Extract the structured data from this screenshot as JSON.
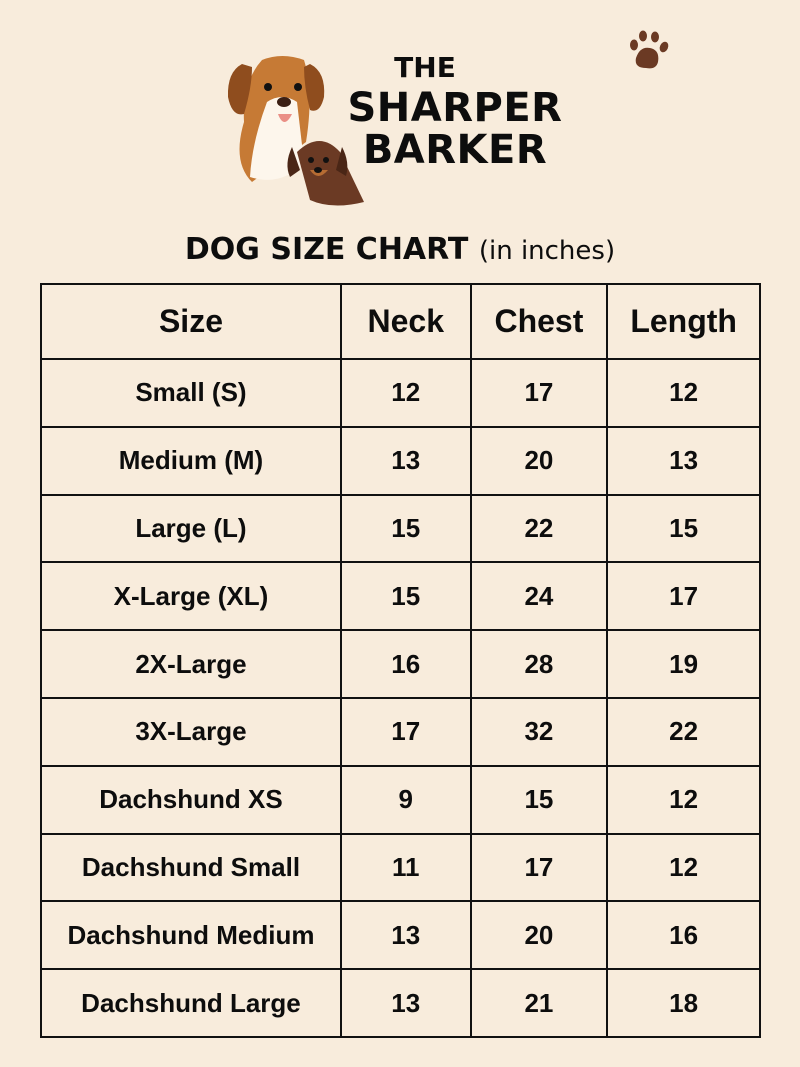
{
  "brand": {
    "line1": "THE",
    "line2": "SHARPER",
    "line3": "BARKER",
    "icon": "dog-faces-logo",
    "paw_icon": "paw-print-icon"
  },
  "title": {
    "main": "DOG SIZE CHART",
    "unit": "(in inches)"
  },
  "table": {
    "headers": [
      "Size",
      "Neck",
      "Chest",
      "Length"
    ],
    "rows": [
      [
        "Small (S)",
        "12",
        "17",
        "12"
      ],
      [
        "Medium (M)",
        "13",
        "20",
        "13"
      ],
      [
        "Large (L)",
        "15",
        "22",
        "15"
      ],
      [
        "X-Large (XL)",
        "15",
        "24",
        "17"
      ],
      [
        "2X-Large",
        "16",
        "28",
        "19"
      ],
      [
        "3X-Large",
        "17",
        "32",
        "22"
      ],
      [
        "Dachshund XS",
        "9",
        "15",
        "12"
      ],
      [
        "Dachshund Small",
        "11",
        "17",
        "12"
      ],
      [
        "Dachshund Medium",
        "13",
        "20",
        "16"
      ],
      [
        "Dachshund Large",
        "13",
        "21",
        "18"
      ]
    ]
  },
  "colors": {
    "background": "#f8ecdc",
    "text": "#0d0d0d",
    "paw": "#6b3a24"
  }
}
